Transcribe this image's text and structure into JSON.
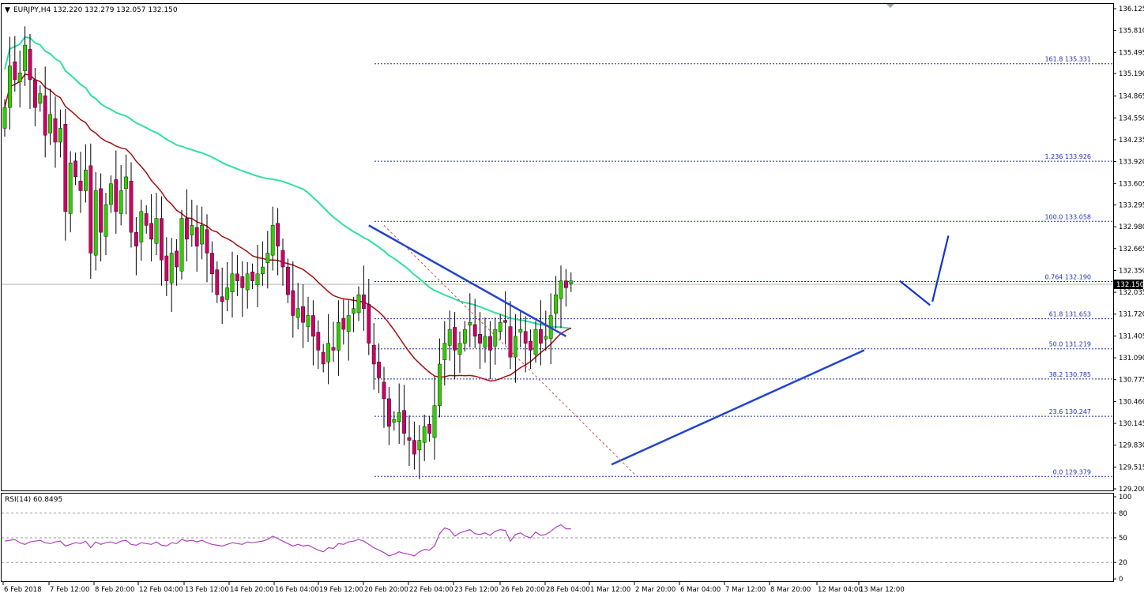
{
  "header": {
    "symbol_line": "EURJPY,H4  132.220 132.279 132.057 132.150",
    "rsi_label": "RSI(14) 60.8495"
  },
  "colors": {
    "bull": "#33cc00",
    "bear": "#cc0066",
    "wick": "#000000",
    "ma_slow": "#2fe0a0",
    "ma_fast": "#a01010",
    "trendline": "#2244cc",
    "fib": "#2233aa",
    "rsi": "#b040c0",
    "diag": "#d05050",
    "forecast": "#1133cc",
    "price_box": "#000000"
  },
  "chart_data": [
    {
      "type": "candlestick",
      "symbol": "EURJPY",
      "timeframe": "H4",
      "ohlc_header": {
        "open": 132.22,
        "high": 132.279,
        "low": 132.057,
        "close": 132.15
      },
      "current_price": "132.150",
      "y_ticks": [
        "136.125",
        "135.810",
        "135.495",
        "135.190",
        "134.865",
        "134.550",
        "134.235",
        "133.920",
        "133.605",
        "133.295",
        "132.980",
        "132.665",
        "132.350",
        "132.035",
        "131.720",
        "131.405",
        "131.090",
        "130.775",
        "130.460",
        "130.145",
        "129.830",
        "129.515",
        "129.200"
      ],
      "ylim": [
        129.2,
        136.125
      ],
      "x_labels": [
        "6 Feb 2018",
        "7 Feb 12:00",
        "8 Feb 20:00",
        "12 Feb 04:00",
        "13 Feb 12:00",
        "14 Feb 20:00",
        "16 Feb 04:00",
        "19 Feb 12:00",
        "20 Feb 20:00",
        "22 Feb 04:00",
        "23 Feb 12:00",
        "26 Feb 20:00",
        "28 Feb 04:00",
        "1 Mar 12:00",
        "2 Mar 20:00",
        "6 Mar 04:00",
        "7 Mar 12:00",
        "8 Mar 20:00",
        "12 Mar 04:00",
        "13 Mar 12:00"
      ],
      "closes": [
        134.7,
        135.3,
        135.1,
        135.2,
        135.6,
        135.1,
        134.7,
        134.9,
        134.3,
        134.6,
        134.2,
        134.4,
        133.2,
        133.9,
        133.7,
        133.5,
        133.8,
        132.6,
        133.5,
        132.9,
        133.3,
        133.6,
        133.2,
        133.5,
        133.7,
        132.9,
        132.7,
        133.2,
        133.0,
        132.8,
        133.1,
        132.5,
        132.2,
        132.6,
        132.4,
        133.1,
        132.8,
        133.0,
        132.7,
        133.0,
        132.6,
        132.3,
        132.0,
        131.9,
        132.1,
        132.3,
        132.2,
        132.1,
        132.3,
        132.2,
        132.3,
        132.4,
        132.6,
        133.0,
        132.7,
        132.4,
        132.0,
        131.7,
        131.8,
        131.6,
        131.7,
        131.4,
        131.2,
        131.0,
        131.3,
        131.2,
        131.6,
        131.5,
        131.7,
        131.8,
        132.0,
        131.8,
        131.3,
        131.0,
        130.8,
        130.5,
        130.1,
        130.2,
        130.3,
        130.0,
        129.9,
        129.7,
        129.9,
        130.1,
        130.0,
        130.4,
        131.0,
        131.3,
        131.5,
        131.2,
        131.3,
        131.5,
        131.6,
        131.4,
        131.3,
        131.4,
        131.2,
        131.5,
        131.6,
        131.6,
        131.1,
        131.4,
        131.5,
        131.3,
        131.2,
        131.5,
        131.3,
        131.4,
        131.7,
        132.0,
        132.2,
        132.1,
        132.2
      ],
      "fibonacci_levels": [
        {
          "label": "161.8 135.331",
          "value": 135.331
        },
        {
          "label": "1.236 133.926",
          "value": 133.926
        },
        {
          "label": "100.0 133.058",
          "value": 133.058
        },
        {
          "label": "0.764 132.190",
          "value": 132.19
        },
        {
          "label": "61.8 131.653",
          "value": 131.653
        },
        {
          "label": "50.0 131.219",
          "value": 131.219
        },
        {
          "label": "38.2 130.785",
          "value": 130.785
        },
        {
          "label": "23.6 130.247",
          "value": 130.247
        },
        {
          "label": "0.0 129.379",
          "value": 129.379
        }
      ]
    },
    {
      "type": "line",
      "indicator": "RSI(14)",
      "value": 60.8495,
      "y_ticks": [
        "100",
        "80",
        "50",
        "20",
        "0"
      ],
      "ylim": [
        0,
        100
      ],
      "values": [
        46,
        47,
        48,
        44,
        42,
        45,
        46,
        47,
        44,
        43,
        45,
        46,
        40,
        42,
        44,
        43,
        46,
        38,
        45,
        42,
        44,
        45,
        43,
        46,
        47,
        42,
        41,
        44,
        43,
        42,
        45,
        41,
        40,
        44,
        43,
        48,
        46,
        47,
        45,
        47,
        44,
        42,
        41,
        40,
        42,
        44,
        43,
        42,
        45,
        44,
        45,
        46,
        48,
        52,
        49,
        46,
        43,
        40,
        42,
        40,
        41,
        38,
        35,
        33,
        38,
        37,
        43,
        42,
        45,
        46,
        48,
        46,
        42,
        38,
        35,
        32,
        28,
        30,
        33,
        31,
        30,
        28,
        33,
        36,
        35,
        40,
        55,
        62,
        60,
        52,
        56,
        58,
        60,
        55,
        54,
        56,
        53,
        58,
        60,
        59,
        46,
        54,
        56,
        52,
        50,
        57,
        53,
        54,
        58,
        63,
        66,
        61,
        61
      ]
    }
  ]
}
